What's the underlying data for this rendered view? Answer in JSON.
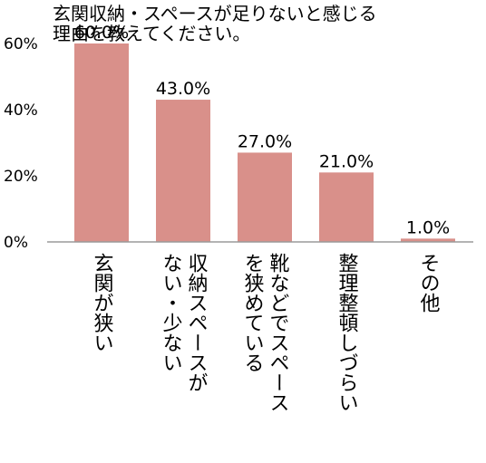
{
  "chart_data": {
    "type": "bar",
    "title_lines": [
      "玄関収納・スペースが足りないと感じる",
      "理由を教えてください。"
    ],
    "categories": [
      [
        "玄関が狭い"
      ],
      [
        "収納スペースが",
        "ない・少ない"
      ],
      [
        "靴などでスペース",
        "を狭めている"
      ],
      [
        "整理整頓しづらい"
      ],
      [
        "その他"
      ]
    ],
    "values": [
      60.0,
      43.0,
      27.0,
      21.0,
      1.0
    ],
    "data_labels": [
      "60.0%",
      "43.0%",
      "27.0%",
      "21.0%",
      "1.0%"
    ],
    "y_ticks": [
      0,
      20,
      40,
      60
    ],
    "y_tick_labels": [
      "0%",
      "20%",
      "40%",
      "60%"
    ],
    "ylim": [
      0,
      60
    ],
    "grid": false,
    "legend": "none",
    "bar_color": "#d9908a",
    "axis_color": "#9a9a9a"
  }
}
